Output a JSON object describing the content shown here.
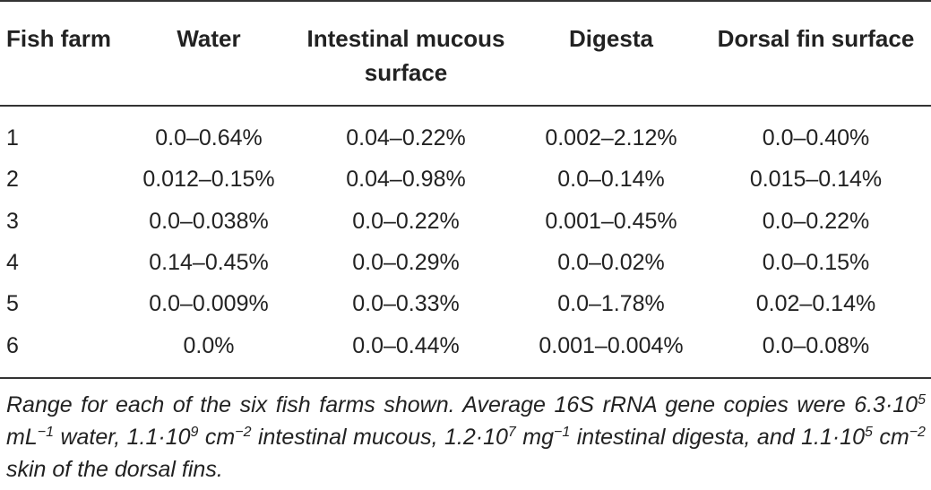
{
  "table": {
    "headers": [
      "Fish farm",
      "Water",
      "Intestinal mucous surface",
      "Digesta",
      "Dorsal fin surface"
    ],
    "rows": [
      [
        "1",
        "0.0–0.64%",
        "0.04–0.22%",
        "0.002–2.12%",
        "0.0–0.40%"
      ],
      [
        "2",
        "0.012–0.15%",
        "0.04–0.98%",
        "0.0–0.14%",
        "0.015–0.14%"
      ],
      [
        "3",
        "0.0–0.038%",
        "0.0–0.22%",
        "0.001–0.45%",
        "0.0–0.22%"
      ],
      [
        "4",
        "0.14–0.45%",
        "0.0–0.29%",
        "0.0–0.02%",
        "0.0–0.15%"
      ],
      [
        "5",
        "0.0–0.009%",
        "0.0–0.33%",
        "0.0–1.78%",
        "0.02–0.14%"
      ],
      [
        "6",
        "0.0%",
        "0.0–0.44%",
        "0.001–0.004%",
        "0.0–0.08%"
      ]
    ]
  },
  "caption": {
    "p1": "Range for each of the six fish farms shown. Average 16S rRNA gene copies were 6.3·10",
    "e1": "5",
    "p2": " mL",
    "e2": "−1",
    "p3": " water, 1.1·10",
    "e3": "9",
    "p4": " cm",
    "e4": "−2",
    "p5": " intestinal mucous, 1.2·10",
    "e5": "7",
    "p6": " mg",
    "e6": "−1",
    "p7": " intestinal digesta, and 1.1·10",
    "e7": "5",
    "p8": " cm",
    "e8": "−2",
    "p9": " skin of the dorsal fins."
  }
}
